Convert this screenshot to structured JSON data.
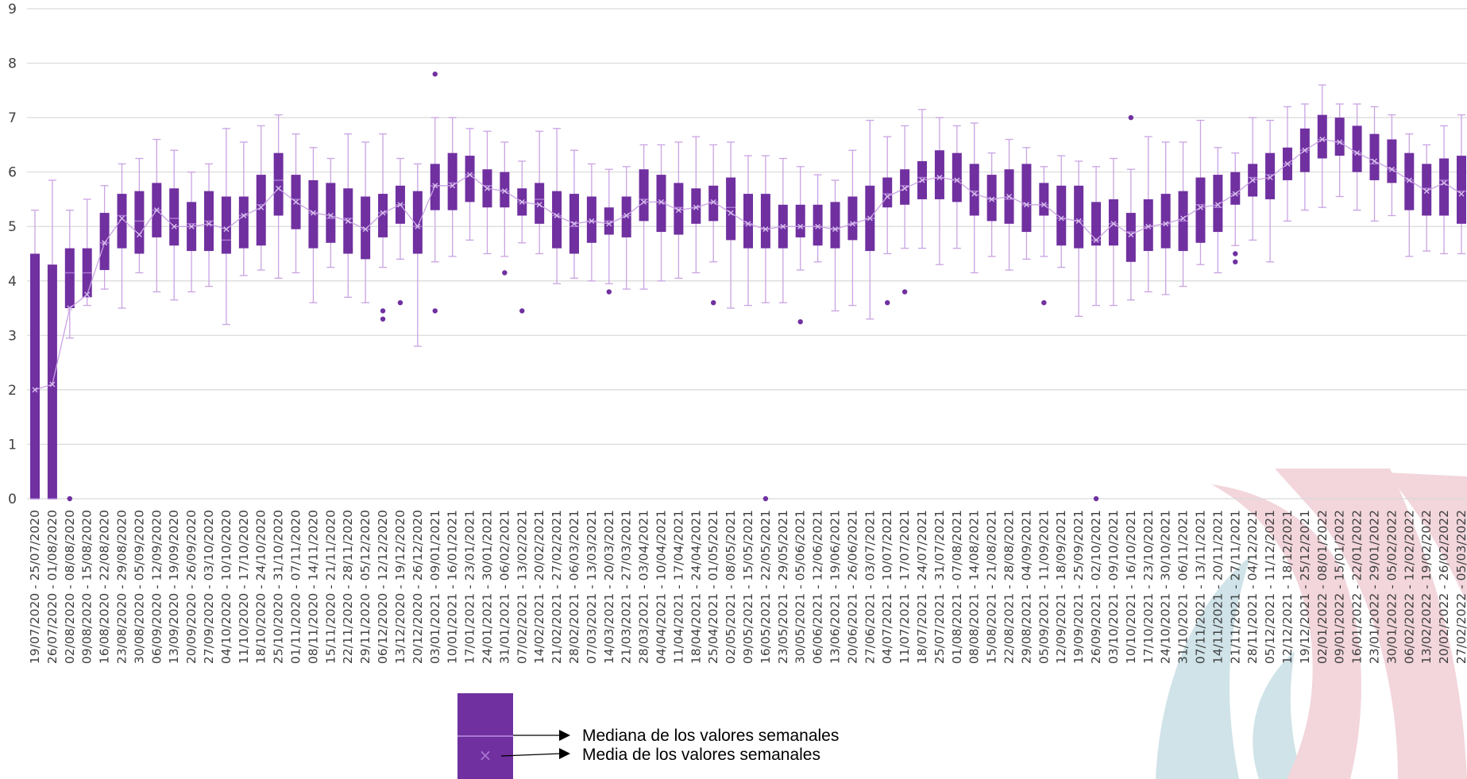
{
  "colors": {
    "box_fill": "#7030A0",
    "whisker": "#C9A3E3",
    "mean_line": "#C9A3E3",
    "gridline": "#D9D9D9",
    "logo_teal": "#CFE3E8",
    "logo_pink": "#F2D6DC"
  },
  "chart_data": {
    "type": "box",
    "title": "",
    "xlabel": "",
    "ylabel": "",
    "ylim": [
      0,
      9
    ],
    "yticks": [
      0,
      1,
      2,
      3,
      4,
      5,
      6,
      7,
      8,
      9
    ],
    "grid": true,
    "categories": [
      "19/07/2020 - 25/07/2020",
      "26/07/2020 - 01/08/2020",
      "02/08/2020 - 08/08/2020",
      "09/08/2020 - 15/08/2020",
      "16/08/2020 - 22/08/2020",
      "23/08/2020 - 29/08/2020",
      "30/08/2020 - 05/09/2020",
      "06/09/2020 - 12/09/2020",
      "13/09/2020 - 19/09/2020",
      "20/09/2020 - 26/09/2020",
      "27/09/2020 - 03/10/2020",
      "04/10/2020 - 10/10/2020",
      "11/10/2020 - 17/10/2020",
      "18/10/2020 - 24/10/2020",
      "25/10/2020 - 31/10/2020",
      "01/11/2020 - 07/11/2020",
      "08/11/2020 - 14/11/2020",
      "15/11/2020 - 21/11/2020",
      "22/11/2020 - 28/11/2020",
      "29/11/2020 - 05/12/2020",
      "06/12/2020 - 12/12/2020",
      "13/12/2020 - 19/12/2020",
      "20/12/2020 - 26/12/2020",
      "03/01/2021 - 09/01/2021",
      "10/01/2021 - 16/01/2021",
      "17/01/2021 - 23/01/2021",
      "24/01/2021 - 30/01/2021",
      "31/01/2021 - 06/02/2021",
      "07/02/2021 - 13/02/2021",
      "14/02/2021 - 20/02/2021",
      "21/02/2021 - 27/02/2021",
      "28/02/2021 - 06/03/2021",
      "07/03/2021 - 13/03/2021",
      "14/03/2021 - 20/03/2021",
      "21/03/2021 - 27/03/2021",
      "28/03/2021 - 03/04/2021",
      "04/04/2021 - 10/04/2021",
      "11/04/2021 - 17/04/2021",
      "18/04/2021 - 24/04/2021",
      "25/04/2021 - 01/05/2021",
      "02/05/2021 - 08/05/2021",
      "09/05/2021 - 15/05/2021",
      "16/05/2021 - 22/05/2021",
      "23/05/2021 - 29/05/2021",
      "30/05/2021 - 05/06/2021",
      "06/06/2021 - 12/06/2021",
      "13/06/2021 - 19/06/2021",
      "20/06/2021 - 26/06/2021",
      "27/06/2021 - 03/07/2021",
      "04/07/2021 - 10/07/2021",
      "11/07/2021 - 17/07/2021",
      "18/07/2021 - 24/07/2021",
      "25/07/2021 - 31/07/2021",
      "01/08/2021 - 07/08/2021",
      "08/08/2021 - 14/08/2021",
      "15/08/2021 - 21/08/2021",
      "22/08/2021 - 28/08/2021",
      "29/08/2021 - 04/09/2021",
      "05/09/2021 - 11/09/2021",
      "12/09/2021 - 18/09/2021",
      "19/09/2021 - 25/09/2021",
      "26/09/2021 - 02/10/2021",
      "03/10/2021 - 09/10/2021",
      "10/10/2021 - 16/10/2021",
      "17/10/2021 - 23/10/2021",
      "24/10/2021 - 30/10/2021",
      "31/10/2021 - 06/11/2021",
      "07/11/2021 - 13/11/2021",
      "14/11/2021 - 20/11/2021",
      "21/11/2021 - 27/11/2021",
      "28/11/2021 - 04/12/2021",
      "05/12/2021 - 11/12/2021",
      "12/12/2021 - 18/12/2021",
      "19/12/2021 - 25/12/2021",
      "02/01/2022 - 08/01/2022",
      "09/01/2022 - 15/01/2022",
      "16/01/2022 - 22/01/2022",
      "23/01/2022 - 29/01/2022",
      "30/01/2022 - 05/02/2022",
      "06/02/2022 - 12/02/2022",
      "13/02/2022 - 19/02/2022",
      "20/02/2022 - 26/02/2022",
      "27/02/2022 - 05/03/2022"
    ],
    "boxes": [
      {
        "whisker_low": 0,
        "q1": 0,
        "median": 0,
        "q3": 4.5,
        "whisker_high": 5.3,
        "mean": 2
      },
      {
        "whisker_low": 0,
        "q1": 0,
        "median": 0,
        "q3": 4.3,
        "whisker_high": 5.85,
        "mean": 2.1
      },
      {
        "whisker_low": 2.95,
        "q1": 3.5,
        "median": 4.15,
        "q3": 4.6,
        "whisker_high": 5.3,
        "mean": 3.5,
        "outliers": [
          0
        ]
      },
      {
        "whisker_low": 3.55,
        "q1": 3.7,
        "median": 4.15,
        "q3": 4.6,
        "whisker_high": 5.5,
        "mean": 3.75
      },
      {
        "whisker_low": 3.85,
        "q1": 4.2,
        "median": 4.7,
        "q3": 5.25,
        "whisker_high": 5.75,
        "mean": 4.7
      },
      {
        "whisker_low": 3.5,
        "q1": 4.6,
        "median": 5.2,
        "q3": 5.6,
        "whisker_high": 6.15,
        "mean": 5.15
      },
      {
        "whisker_low": 4.15,
        "q1": 4.5,
        "median": 5.1,
        "q3": 5.65,
        "whisker_high": 6.25,
        "mean": 4.85
      },
      {
        "whisker_low": 3.8,
        "q1": 4.8,
        "median": 5.3,
        "q3": 5.8,
        "whisker_high": 6.6,
        "mean": 5.3
      },
      {
        "whisker_low": 3.65,
        "q1": 4.65,
        "median": 5.15,
        "q3": 5.7,
        "whisker_high": 6.4,
        "mean": 5.0
      },
      {
        "whisker_low": 3.8,
        "q1": 4.55,
        "median": 5.05,
        "q3": 5.45,
        "whisker_high": 6.0,
        "mean": 5.0
      },
      {
        "whisker_low": 3.9,
        "q1": 4.55,
        "median": 5.1,
        "q3": 5.65,
        "whisker_high": 6.15,
        "mean": 5.05
      },
      {
        "whisker_low": 3.2,
        "q1": 4.5,
        "median": 4.75,
        "q3": 5.55,
        "whisker_high": 6.8,
        "mean": 4.95
      },
      {
        "whisker_low": 4.1,
        "q1": 4.6,
        "median": 5.2,
        "q3": 5.55,
        "whisker_high": 6.55,
        "mean": 5.2
      },
      {
        "whisker_low": 4.2,
        "q1": 4.65,
        "median": 5.4,
        "q3": 5.95,
        "whisker_high": 6.85,
        "mean": 5.35
      },
      {
        "whisker_low": 4.05,
        "q1": 5.2,
        "median": 5.85,
        "q3": 6.35,
        "whisker_high": 7.05,
        "mean": 5.7
      },
      {
        "whisker_low": 4.15,
        "q1": 4.95,
        "median": 5.5,
        "q3": 5.95,
        "whisker_high": 6.7,
        "mean": 5.45
      },
      {
        "whisker_low": 3.6,
        "q1": 4.6,
        "median": 5.25,
        "q3": 5.85,
        "whisker_high": 6.45,
        "mean": 5.25
      },
      {
        "whisker_low": 4.25,
        "q1": 4.7,
        "median": 5.15,
        "q3": 5.8,
        "whisker_high": 6.25,
        "mean": 5.2
      },
      {
        "whisker_low": 3.7,
        "q1": 4.5,
        "median": 5.15,
        "q3": 5.7,
        "whisker_high": 6.7,
        "mean": 5.1
      },
      {
        "whisker_low": 3.6,
        "q1": 4.4,
        "median": 4.95,
        "q3": 5.55,
        "whisker_high": 6.55,
        "mean": 4.95
      },
      {
        "whisker_low": 4.25,
        "q1": 4.8,
        "median": 5.25,
        "q3": 5.6,
        "whisker_high": 6.7,
        "mean": 5.25,
        "outliers": [
          3.45,
          3.3
        ]
      },
      {
        "whisker_low": 4.4,
        "q1": 5.05,
        "median": 5.4,
        "q3": 5.75,
        "whisker_high": 6.25,
        "mean": 5.4,
        "outliers": [
          3.6
        ]
      },
      {
        "whisker_low": 2.8,
        "q1": 4.5,
        "median": 5.0,
        "q3": 5.65,
        "whisker_high": 6.15,
        "mean": 5.0
      },
      {
        "whisker_low": 4.35,
        "q1": 5.3,
        "median": 5.75,
        "q3": 6.15,
        "whisker_high": 7.0,
        "mean": 5.75,
        "outliers": [
          7.8,
          3.45
        ]
      },
      {
        "whisker_low": 4.45,
        "q1": 5.3,
        "median": 5.8,
        "q3": 6.35,
        "whisker_high": 7.0,
        "mean": 5.75
      },
      {
        "whisker_low": 4.75,
        "q1": 5.45,
        "median": 5.95,
        "q3": 6.3,
        "whisker_high": 6.8,
        "mean": 5.95
      },
      {
        "whisker_low": 4.5,
        "q1": 5.35,
        "median": 5.75,
        "q3": 6.05,
        "whisker_high": 6.75,
        "mean": 5.7
      },
      {
        "whisker_low": 4.45,
        "q1": 5.35,
        "median": 5.65,
        "q3": 6.0,
        "whisker_high": 6.55,
        "mean": 5.65,
        "outliers": [
          4.15
        ]
      },
      {
        "whisker_low": 4.7,
        "q1": 5.2,
        "median": 5.45,
        "q3": 5.7,
        "whisker_high": 6.2,
        "mean": 5.45,
        "outliers": [
          3.45
        ]
      },
      {
        "whisker_low": 4.5,
        "q1": 5.05,
        "median": 5.5,
        "q3": 5.8,
        "whisker_high": 6.75,
        "mean": 5.4
      },
      {
        "whisker_low": 3.95,
        "q1": 4.6,
        "median": 5.2,
        "q3": 5.65,
        "whisker_high": 6.8,
        "mean": 5.2
      },
      {
        "whisker_low": 4.05,
        "q1": 4.5,
        "median": 5.0,
        "q3": 5.6,
        "whisker_high": 6.4,
        "mean": 5.05
      },
      {
        "whisker_low": 4.0,
        "q1": 4.7,
        "median": 5.1,
        "q3": 5.55,
        "whisker_high": 6.15,
        "mean": 5.1
      },
      {
        "whisker_low": 3.95,
        "q1": 4.85,
        "median": 5.1,
        "q3": 5.35,
        "whisker_high": 6.05,
        "mean": 5.05,
        "outliers": [
          3.8
        ]
      },
      {
        "whisker_low": 3.85,
        "q1": 4.8,
        "median": 5.2,
        "q3": 5.55,
        "whisker_high": 6.1,
        "mean": 5.2
      },
      {
        "whisker_low": 3.85,
        "q1": 5.1,
        "median": 5.5,
        "q3": 6.05,
        "whisker_high": 6.5,
        "mean": 5.45
      },
      {
        "whisker_low": 4.0,
        "q1": 4.9,
        "median": 5.45,
        "q3": 5.95,
        "whisker_high": 6.5,
        "mean": 5.45
      },
      {
        "whisker_low": 4.05,
        "q1": 4.85,
        "median": 5.35,
        "q3": 5.8,
        "whisker_high": 6.55,
        "mean": 5.3
      },
      {
        "whisker_low": 4.15,
        "q1": 5.05,
        "median": 5.35,
        "q3": 5.7,
        "whisker_high": 6.65,
        "mean": 5.35
      },
      {
        "whisker_low": 4.35,
        "q1": 5.1,
        "median": 5.45,
        "q3": 5.75,
        "whisker_high": 6.5,
        "mean": 5.45,
        "outliers": [
          3.6
        ]
      },
      {
        "whisker_low": 3.5,
        "q1": 4.75,
        "median": 5.35,
        "q3": 5.9,
        "whisker_high": 6.55,
        "mean": 5.25
      },
      {
        "whisker_low": 3.55,
        "q1": 4.6,
        "median": 5.05,
        "q3": 5.6,
        "whisker_high": 6.3,
        "mean": 5.05
      },
      {
        "whisker_low": 3.6,
        "q1": 4.6,
        "median": 4.95,
        "q3": 5.6,
        "whisker_high": 6.3,
        "mean": 4.95,
        "outliers": [
          0
        ]
      },
      {
        "whisker_low": 3.6,
        "q1": 4.6,
        "median": 5.0,
        "q3": 5.4,
        "whisker_high": 6.25,
        "mean": 5.0
      },
      {
        "whisker_low": 4.2,
        "q1": 4.8,
        "median": 5.0,
        "q3": 5.4,
        "whisker_high": 6.1,
        "mean": 5.0,
        "outliers": [
          3.25
        ]
      },
      {
        "whisker_low": 4.35,
        "q1": 4.65,
        "median": 5.0,
        "q3": 5.4,
        "whisker_high": 5.95,
        "mean": 5.0
      },
      {
        "whisker_low": 3.45,
        "q1": 4.6,
        "median": 4.95,
        "q3": 5.45,
        "whisker_high": 5.85,
        "mean": 4.95
      },
      {
        "whisker_low": 3.55,
        "q1": 4.75,
        "median": 5.05,
        "q3": 5.55,
        "whisker_high": 6.4,
        "mean": 5.05
      },
      {
        "whisker_low": 3.3,
        "q1": 4.55,
        "median": 5.15,
        "q3": 5.75,
        "whisker_high": 6.95,
        "mean": 5.15
      },
      {
        "whisker_low": 4.5,
        "q1": 5.35,
        "median": 5.6,
        "q3": 5.9,
        "whisker_high": 6.65,
        "mean": 5.55,
        "outliers": [
          3.6
        ]
      },
      {
        "whisker_low": 4.6,
        "q1": 5.4,
        "median": 5.75,
        "q3": 6.05,
        "whisker_high": 6.85,
        "mean": 5.7,
        "outliers": [
          3.8
        ]
      },
      {
        "whisker_low": 4.6,
        "q1": 5.5,
        "median": 5.9,
        "q3": 6.2,
        "whisker_high": 7.15,
        "mean": 5.85
      },
      {
        "whisker_low": 4.3,
        "q1": 5.5,
        "median": 5.9,
        "q3": 6.4,
        "whisker_high": 7.0,
        "mean": 5.9
      },
      {
        "whisker_low": 4.6,
        "q1": 5.45,
        "median": 5.85,
        "q3": 6.35,
        "whisker_high": 6.85,
        "mean": 5.85
      },
      {
        "whisker_low": 4.15,
        "q1": 5.2,
        "median": 5.65,
        "q3": 6.15,
        "whisker_high": 6.9,
        "mean": 5.6
      },
      {
        "whisker_low": 4.45,
        "q1": 5.1,
        "median": 5.5,
        "q3": 5.95,
        "whisker_high": 6.35,
        "mean": 5.5
      },
      {
        "whisker_low": 4.2,
        "q1": 5.05,
        "median": 5.5,
        "q3": 6.05,
        "whisker_high": 6.6,
        "mean": 5.55
      },
      {
        "whisker_low": 4.4,
        "q1": 4.9,
        "median": 5.4,
        "q3": 6.15,
        "whisker_high": 6.45,
        "mean": 5.4
      },
      {
        "whisker_low": 4.45,
        "q1": 5.2,
        "median": 5.4,
        "q3": 5.8,
        "whisker_high": 6.1,
        "mean": 5.4,
        "outliers": [
          3.6
        ]
      },
      {
        "whisker_low": 4.25,
        "q1": 4.65,
        "median": 5.15,
        "q3": 5.75,
        "whisker_high": 6.3,
        "mean": 5.15
      },
      {
        "whisker_low": 3.35,
        "q1": 4.6,
        "median": 5.1,
        "q3": 5.75,
        "whisker_high": 6.2,
        "mean": 5.1
      },
      {
        "whisker_low": 3.55,
        "q1": 4.65,
        "median": 4.75,
        "q3": 5.45,
        "whisker_high": 6.1,
        "mean": 4.75,
        "outliers": [
          0
        ]
      },
      {
        "whisker_low": 3.55,
        "q1": 4.65,
        "median": 5.05,
        "q3": 5.5,
        "whisker_high": 6.25,
        "mean": 5.05
      },
      {
        "whisker_low": 3.65,
        "q1": 4.35,
        "median": 4.9,
        "q3": 5.25,
        "whisker_high": 6.05,
        "mean": 4.85,
        "outliers": [
          7.0
        ]
      },
      {
        "whisker_low": 3.8,
        "q1": 4.55,
        "median": 5.0,
        "q3": 5.5,
        "whisker_high": 6.65,
        "mean": 5.0
      },
      {
        "whisker_low": 3.75,
        "q1": 4.6,
        "median": 5.05,
        "q3": 5.6,
        "whisker_high": 6.55,
        "mean": 5.05
      },
      {
        "whisker_low": 3.9,
        "q1": 4.55,
        "median": 5.1,
        "q3": 5.65,
        "whisker_high": 6.55,
        "mean": 5.15
      },
      {
        "whisker_low": 4.3,
        "q1": 4.7,
        "median": 5.4,
        "q3": 5.9,
        "whisker_high": 6.95,
        "mean": 5.35
      },
      {
        "whisker_low": 4.15,
        "q1": 4.9,
        "median": 5.35,
        "q3": 5.95,
        "whisker_high": 6.45,
        "mean": 5.4
      },
      {
        "whisker_low": 4.65,
        "q1": 5.4,
        "median": 5.6,
        "q3": 6.0,
        "whisker_high": 6.35,
        "mean": 5.6,
        "outliers": [
          4.5,
          4.35
        ]
      },
      {
        "whisker_low": 4.75,
        "q1": 5.55,
        "median": 5.9,
        "q3": 6.15,
        "whisker_high": 7.0,
        "mean": 5.85
      },
      {
        "whisker_low": 4.35,
        "q1": 5.5,
        "median": 5.95,
        "q3": 6.35,
        "whisker_high": 6.95,
        "mean": 5.9
      },
      {
        "whisker_low": 5.1,
        "q1": 5.85,
        "median": 6.15,
        "q3": 6.45,
        "whisker_high": 7.2,
        "mean": 6.15
      },
      {
        "whisker_low": 5.3,
        "q1": 6.0,
        "median": 6.4,
        "q3": 6.8,
        "whisker_high": 7.25,
        "mean": 6.4
      },
      {
        "whisker_low": 5.35,
        "q1": 6.25,
        "median": 6.6,
        "q3": 7.05,
        "whisker_high": 7.6,
        "mean": 6.6
      },
      {
        "whisker_low": 5.55,
        "q1": 6.3,
        "median": 6.55,
        "q3": 7.0,
        "whisker_high": 7.25,
        "mean": 6.55
      },
      {
        "whisker_low": 5.3,
        "q1": 6.0,
        "median": 6.35,
        "q3": 6.85,
        "whisker_high": 7.25,
        "mean": 6.35
      },
      {
        "whisker_low": 5.1,
        "q1": 5.85,
        "median": 6.15,
        "q3": 6.7,
        "whisker_high": 7.2,
        "mean": 6.2
      },
      {
        "whisker_low": 5.2,
        "q1": 5.8,
        "median": 6.05,
        "q3": 6.6,
        "whisker_high": 7.05,
        "mean": 6.05
      },
      {
        "whisker_low": 4.45,
        "q1": 5.3,
        "median": 5.85,
        "q3": 6.35,
        "whisker_high": 6.7,
        "mean": 5.85
      },
      {
        "whisker_low": 4.55,
        "q1": 5.2,
        "median": 5.7,
        "q3": 6.15,
        "whisker_high": 6.5,
        "mean": 5.65
      },
      {
        "whisker_low": 4.5,
        "q1": 5.2,
        "median": 5.85,
        "q3": 6.25,
        "whisker_high": 6.85,
        "mean": 5.8
      },
      {
        "whisker_low": 4.5,
        "q1": 5.05,
        "median": 5.65,
        "q3": 6.3,
        "whisker_high": 7.05,
        "mean": 5.6
      }
    ]
  },
  "legend": {
    "median_label": "Mediana de los valores semanales",
    "mean_label": "Media de los valores semanales",
    "mean_marker": "×"
  },
  "icons": {
    "legend_arrow": "arrow-right-icon",
    "watermark": "drop-logo-icon"
  }
}
